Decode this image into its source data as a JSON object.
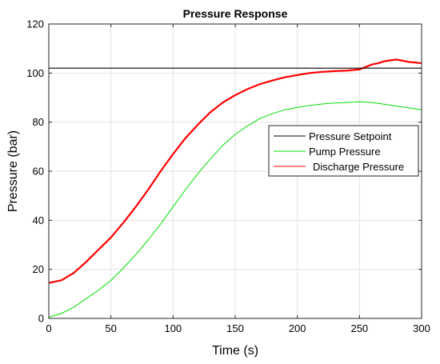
{
  "chart_data": {
    "type": "line",
    "title": "Pressure Response",
    "xlabel": "Time (s)",
    "ylabel": "Pressure (bar)",
    "xlim": [
      0,
      300
    ],
    "ylim": [
      0,
      120
    ],
    "xticks": [
      0,
      50,
      100,
      150,
      200,
      250,
      300
    ],
    "yticks": [
      0,
      20,
      40,
      60,
      80,
      100,
      120
    ],
    "grid": true,
    "legend_position": "right",
    "series": [
      {
        "name": "Pressure Setpoint",
        "color": "#000000",
        "x": [
          0,
          300
        ],
        "y": [
          102,
          102
        ]
      },
      {
        "name": "Pump Pressure",
        "color": "#00dd00",
        "x": [
          0,
          10,
          20,
          30,
          40,
          50,
          60,
          70,
          80,
          90,
          100,
          110,
          120,
          130,
          140,
          150,
          160,
          170,
          180,
          190,
          200,
          210,
          220,
          230,
          240,
          250,
          260,
          270,
          280,
          290,
          300
        ],
        "y": [
          0.5,
          2,
          4.5,
          8,
          11.5,
          15.5,
          20.5,
          26,
          32,
          38.5,
          45.5,
          52.5,
          59,
          65,
          70.5,
          75,
          78.5,
          81.5,
          83.5,
          85,
          86,
          86.8,
          87.4,
          87.8,
          88,
          88.3,
          88,
          87.3,
          86.5,
          85.8,
          85
        ]
      },
      {
        "name": "Discharge Pressure",
        "color": "#ff0000",
        "x": [
          0,
          10,
          20,
          30,
          40,
          50,
          60,
          70,
          80,
          90,
          100,
          110,
          120,
          130,
          140,
          150,
          160,
          170,
          180,
          190,
          200,
          210,
          220,
          230,
          240,
          250,
          255,
          260,
          265,
          270,
          275,
          280,
          285,
          290,
          295,
          300
        ],
        "y": [
          14.5,
          15.5,
          18.5,
          23,
          28,
          33,
          39,
          45.5,
          52.5,
          60,
          67,
          73.5,
          79,
          84,
          88,
          91,
          93.5,
          95.5,
          97,
          98.3,
          99.2,
          100,
          100.5,
          100.8,
          101,
          101.5,
          102.5,
          103.5,
          104,
          104.8,
          105.2,
          105.5,
          105,
          104.5,
          104.3,
          104
        ]
      }
    ]
  }
}
